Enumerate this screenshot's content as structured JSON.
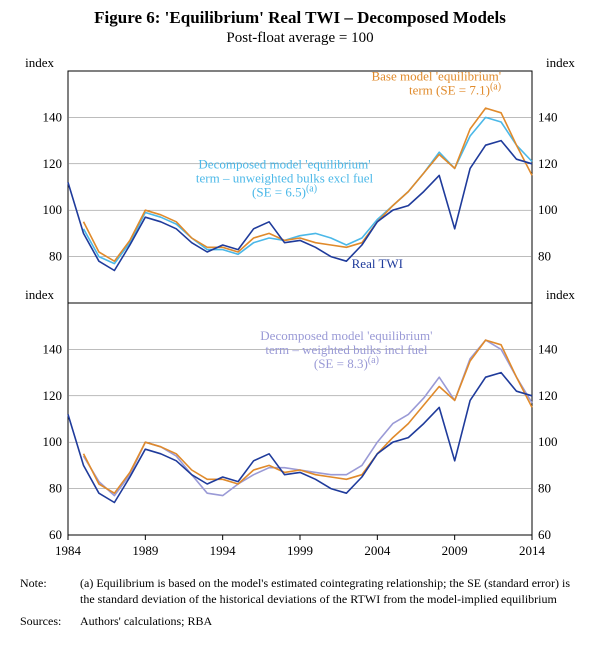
{
  "title": "Figure 6: 'Equilibrium' Real TWI – Decomposed Models",
  "subtitle": "Post-float average = 100",
  "axis_label": "index",
  "x_domain_start": 1984,
  "x_domain_end": 2014,
  "x_ticks": [
    1984,
    1989,
    1994,
    1999,
    2004,
    2009,
    2014
  ],
  "y_ticks": [
    60,
    80,
    100,
    120,
    140
  ],
  "colors": {
    "real_twi": "#1f3b9b",
    "base_model": "#e08a2b",
    "decomp1": "#4bb8e8",
    "decomp2": "#9a9ad6",
    "grid": "#7a7a7a",
    "frame": "#000000",
    "bg": "#ffffff"
  },
  "annotations": {
    "base_model_line1": "Base model 'equilibrium'",
    "base_model_line2": "term (SE = 7.1)",
    "decomp1_line1": "Decomposed model 'equilibrium'",
    "decomp1_line2": "term – unweighted bulks excl fuel",
    "decomp1_line3": "(SE = 6.5)",
    "real_twi_label": "Real TWI",
    "decomp2_line1": "Decomposed model 'equilibrium'",
    "decomp2_line2": "term – weighted bulks incl fuel",
    "decomp2_line3": "(SE = 8.3)",
    "sup_a": "(a)"
  },
  "note_label": "Note:",
  "note_text": "(a) Equilibrium is based on the model's estimated cointegrating relationship; the SE (standard error) is the standard deviation of the historical deviations of the RTWI from the model-implied equilibrium",
  "sources_label": "Sources:",
  "sources_text": "Authors' calculations; RBA",
  "series_years": [
    1984,
    1985,
    1986,
    1987,
    1988,
    1989,
    1990,
    1991,
    1992,
    1993,
    1994,
    1995,
    1996,
    1997,
    1998,
    1999,
    2000,
    2001,
    2002,
    2003,
    2004,
    2005,
    2006,
    2007,
    2008,
    2009,
    2010,
    2011,
    2012,
    2013,
    2014
  ],
  "real_twi": [
    112,
    90,
    78,
    74,
    85,
    97,
    95,
    92,
    86,
    82,
    85,
    83,
    92,
    95,
    86,
    87,
    84,
    80,
    78,
    85,
    95,
    100,
    102,
    108,
    115,
    92,
    118,
    128,
    130,
    122,
    120
  ],
  "base_model": [
    null,
    95,
    82,
    78,
    87,
    100,
    98,
    95,
    88,
    84,
    84,
    82,
    88,
    90,
    87,
    88,
    86,
    85,
    84,
    86,
    95,
    102,
    108,
    116,
    124,
    118,
    135,
    144,
    142,
    128,
    115
  ],
  "decomp1": [
    null,
    92,
    80,
    77,
    86,
    99,
    97,
    94,
    88,
    83,
    83,
    81,
    86,
    88,
    87,
    89,
    90,
    88,
    85,
    88,
    96,
    102,
    108,
    116,
    125,
    118,
    132,
    140,
    138,
    128,
    121
  ],
  "decomp2": [
    null,
    94,
    83,
    77,
    86,
    100,
    98,
    94,
    86,
    78,
    77,
    82,
    86,
    89,
    89,
    88,
    87,
    86,
    86,
    90,
    100,
    108,
    112,
    119,
    128,
    118,
    136,
    144,
    140,
    128,
    117
  ],
  "stroke_width": 1.6
}
